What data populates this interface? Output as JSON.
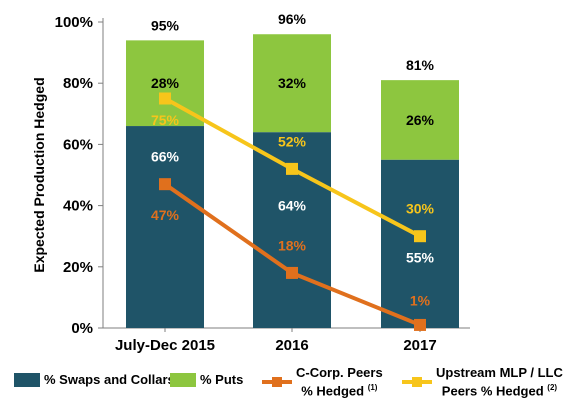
{
  "chart_data": {
    "type": "bar",
    "stacked": true,
    "categories": [
      "July-Dec 2015",
      "2016",
      "2017"
    ],
    "ylabel": "Expected Production Hedged",
    "ylim": [
      0,
      100
    ],
    "yticks": [
      "0%",
      "20%",
      "40%",
      "60%",
      "80%",
      "100%"
    ],
    "grid": false,
    "legend_position": "bottom",
    "series": [
      {
        "name": "% Swaps and Collars",
        "type": "bar",
        "color": "#1f5468",
        "values": [
          66,
          64,
          55
        ],
        "labels": [
          "66%",
          "64%",
          "55%"
        ]
      },
      {
        "name": "% Puts",
        "type": "bar",
        "color": "#8dc63f",
        "values": [
          28,
          32,
          26
        ],
        "labels": [
          "28%",
          "32%",
          "26%"
        ]
      },
      {
        "name": "C-Corp. Peers % Hedged",
        "type": "line",
        "color": "#e0701d",
        "values": [
          47,
          18,
          1
        ],
        "labels": [
          "47%",
          "18%",
          "1%"
        ]
      },
      {
        "name": "Upstream MLP / LLC Peers % Hedged",
        "type": "line",
        "color": "#f7c51b",
        "values": [
          75,
          52,
          30
        ],
        "labels": [
          "75%",
          "52%",
          "30%"
        ]
      }
    ],
    "totals": [
      "95%",
      "96%",
      "81%"
    ]
  },
  "legend": {
    "swaps": "% Swaps and Collars",
    "puts": "% Puts",
    "ccorp_line1": "C-Corp. Peers",
    "ccorp_line2": "% Hedged",
    "ccorp_note": "(1)",
    "mlp_line1": "Upstream MLP / LLC",
    "mlp_line2": "Peers % Hedged",
    "mlp_note": "(2)"
  },
  "colors": {
    "swaps": "#1f5468",
    "puts": "#8dc63f",
    "ccorp": "#e0701d",
    "mlp": "#f7c51b",
    "axis": "#7f7f7f"
  }
}
